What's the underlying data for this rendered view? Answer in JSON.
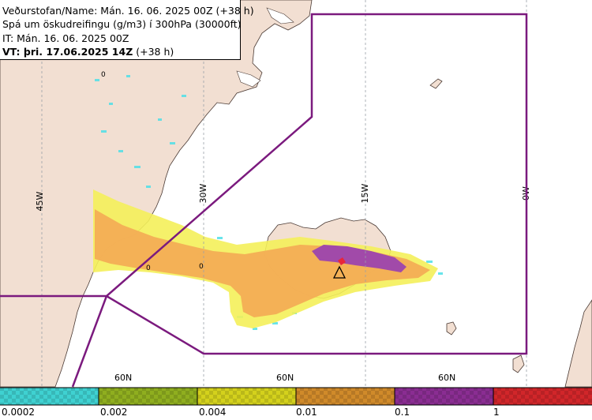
{
  "header": {
    "line1_label": "Veðurstofan/Name:",
    "line1_value": " Mán. 16. 06. 2025 00Z (+38 h)",
    "line2": "Spá um öskudreifingu (g/m3) í 300hPa (30000ft)",
    "line3": "IT: Mán. 16. 06. 2025 00Z",
    "line4_label": "VT: þri. 17.06.2025 14Z",
    "line4_value": " (+38 h)"
  },
  "grid_labels": {
    "lon_45w": "45W",
    "lon_30w": "30W",
    "lon_15w": "15W",
    "lon_0w": "0W",
    "lat_60n_1": "60N",
    "lat_60n_2": "60N",
    "lat_60n_3": "60N"
  },
  "contour_labels": [
    "0",
    "0",
    "0"
  ],
  "legend": {
    "classes": [
      {
        "label": "0.0002",
        "color": "#3fd1d1"
      },
      {
        "label": "0.002",
        "color": "#8fae1f"
      },
      {
        "label": "0.004",
        "color": "#d4d11c"
      },
      {
        "label": "0.01",
        "color": "#d08a2a"
      },
      {
        "label": "0.1",
        "color": "#8a2d92"
      },
      {
        "label": "1",
        "color": "#d1262a"
      }
    ]
  },
  "colors": {
    "land": "#f2dfd2",
    "sea": "#ffffff",
    "boundary": "#7b1a7e",
    "ash_low": "#4fe0e8",
    "ash_yellow": "#f4ef5a",
    "ash_orange": "#f3ad55",
    "ash_purple": "#a14aa9",
    "ash_red": "#e8263b"
  }
}
